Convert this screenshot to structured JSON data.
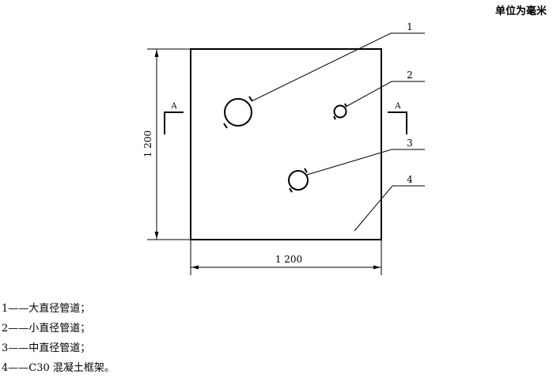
{
  "unit_note": "单位为毫米",
  "dimensions": {
    "width_label": "1 200",
    "height_label": "1 200"
  },
  "section_marks": {
    "left": "A",
    "right": "A"
  },
  "callouts": [
    {
      "number": "1",
      "target": "large-pipe"
    },
    {
      "number": "2",
      "target": "small-pipe"
    },
    {
      "number": "3",
      "target": "medium-pipe"
    },
    {
      "number": "4",
      "target": "frame"
    }
  ],
  "legend": [
    {
      "number": "1",
      "dash": "——",
      "text": "大直径管道；"
    },
    {
      "number": "2",
      "dash": "——",
      "text": "小直径管道；"
    },
    {
      "number": "3",
      "dash": "——",
      "text": "中直径管道；"
    },
    {
      "number": "4",
      "dash": "——",
      "text": "C30 混凝土框架。"
    }
  ]
}
